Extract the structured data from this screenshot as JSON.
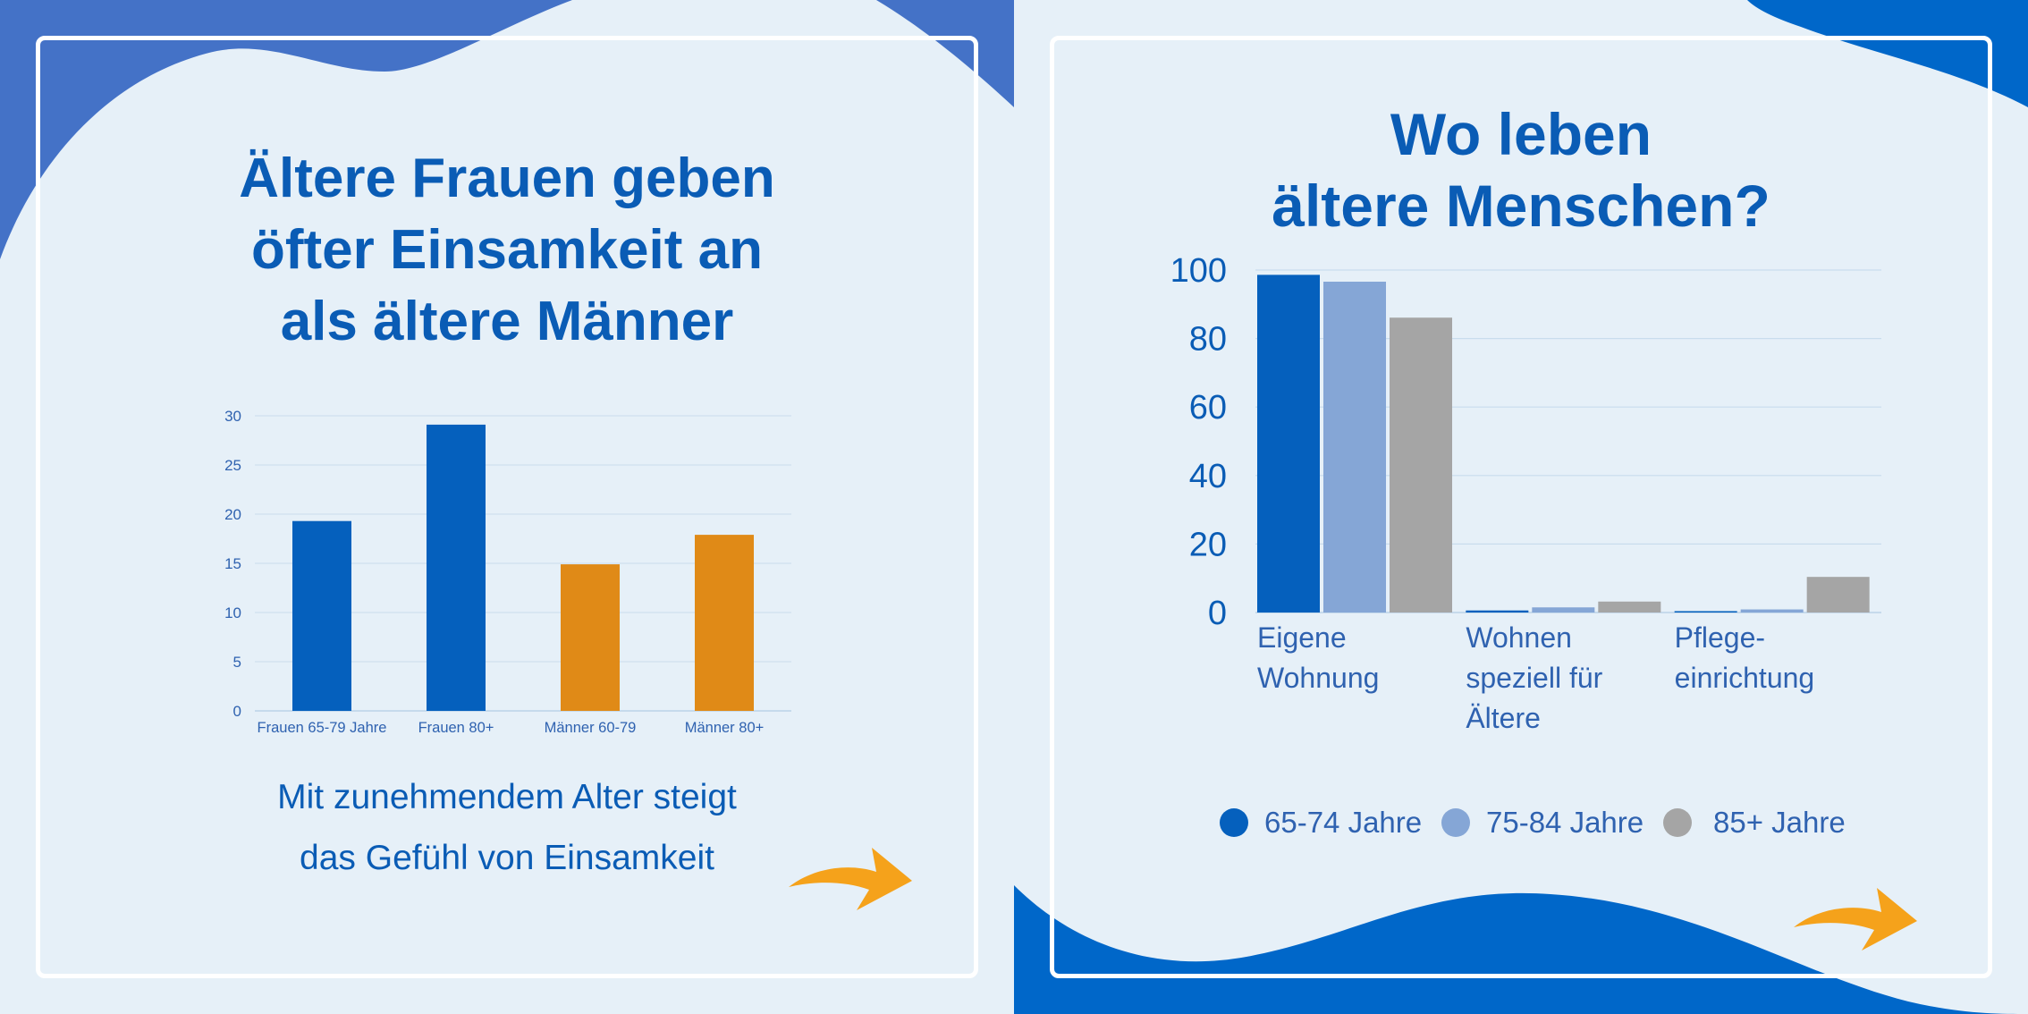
{
  "left": {
    "title_lines": [
      "Ältere Frauen geben",
      "öfter Einsamkeit an",
      "als ältere Männer"
    ],
    "subtitle_lines": [
      "Mit zunehmendem Alter steigt",
      "das Gefühl von Einsamkeit"
    ],
    "colors": {
      "women": "#0560bd",
      "men": "#e08a17",
      "title": "#0a5cb5",
      "wave": "#4472c7"
    }
  },
  "right": {
    "title_lines": [
      "Wo leben",
      "ältere Menschen?"
    ],
    "legend": [
      {
        "label": "65-74 Jahre",
        "color": "#0560bd"
      },
      {
        "label": "75-84 Jahre",
        "color": "#85a6d6"
      },
      {
        "label": "85+ Jahre",
        "color": "#a5a5a5"
      }
    ],
    "colors": {
      "wave": "#0067c9"
    }
  },
  "chart_data": [
    {
      "type": "bar",
      "categories": [
        "Frauen 65-79 Jahre",
        "Frauen 80+",
        "Männer 60-79",
        "Männer 80+"
      ],
      "series": [
        {
          "values": [
            19.3,
            29.1,
            null,
            null
          ],
          "color": "#0560bd"
        },
        {
          "values": [
            null,
            null,
            14.9,
            17.9
          ],
          "color": "#e08a17"
        }
      ],
      "ylim": [
        0,
        30
      ],
      "yticks": [
        0,
        5,
        10,
        15,
        20,
        25,
        30
      ],
      "grid": true,
      "legend": "none"
    },
    {
      "type": "bar",
      "categories": [
        [
          "Eigene",
          "Wohnung"
        ],
        [
          "Wohnen",
          "speziell für",
          "Ältere"
        ],
        [
          "Pflege-",
          "einrichtung"
        ]
      ],
      "series": [
        {
          "name": "65-74 Jahre",
          "values": [
            98.6,
            0.6,
            0.4
          ],
          "color": "#0560bd"
        },
        {
          "name": "75-84 Jahre",
          "values": [
            96.6,
            1.5,
            0.9
          ],
          "color": "#85a6d6"
        },
        {
          "name": "85+ Jahre",
          "values": [
            86.1,
            3.2,
            10.4
          ],
          "color": "#a5a5a5"
        }
      ],
      "ylim": [
        0,
        100
      ],
      "yticks": [
        0,
        20,
        40,
        60,
        80,
        100
      ],
      "grid": true,
      "legend": "bottom"
    }
  ]
}
